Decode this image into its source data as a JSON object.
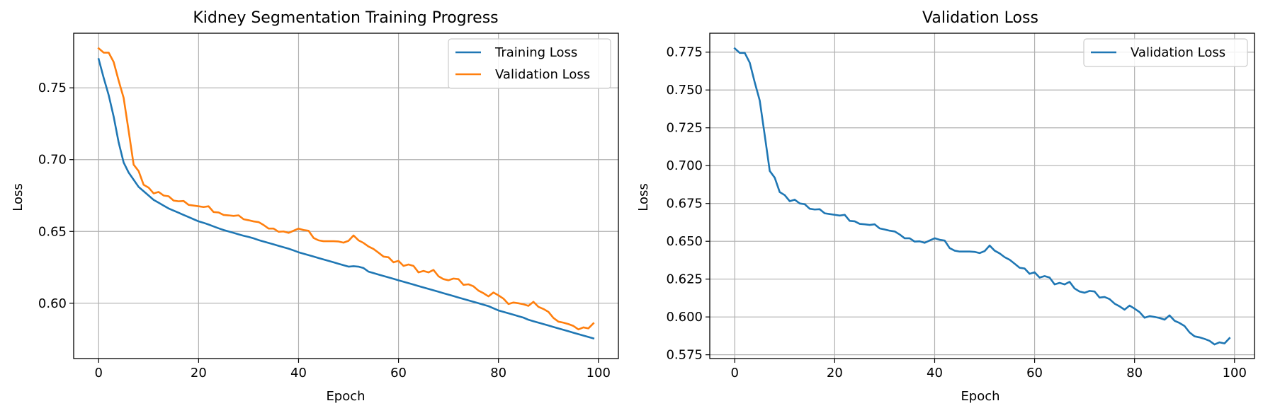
{
  "colors": {
    "training": "#1f77b4",
    "validation": "#ff7f0e",
    "grid": "#b0b0b0"
  },
  "chart_data": [
    {
      "type": "line",
      "title": "Kidney Segmentation Training Progress",
      "xlabel": "Epoch",
      "ylabel": "Loss",
      "xlim": [
        -5,
        104
      ],
      "ylim": [
        0.5615,
        0.788
      ],
      "xticks": [
        0,
        20,
        40,
        60,
        80,
        100
      ],
      "yticks": [
        0.6,
        0.65,
        0.7,
        0.75
      ],
      "ytick_labels": [
        "0.60",
        "0.65",
        "0.70",
        "0.75"
      ],
      "grid": true,
      "legend": "top-right",
      "series": [
        {
          "name": "Training Loss",
          "color": "#1f77b4",
          "x_start": 0,
          "values": [
            0.77,
            0.757,
            0.745,
            0.73,
            0.712,
            0.698,
            0.691,
            0.686,
            0.681,
            0.678,
            0.675,
            0.672,
            0.67,
            0.668,
            0.666,
            0.6645,
            0.663,
            0.6615,
            0.66,
            0.6585,
            0.657,
            0.656,
            0.6548,
            0.6535,
            0.6522,
            0.651,
            0.65,
            0.649,
            0.648,
            0.647,
            0.6462,
            0.6452,
            0.644,
            0.643,
            0.642,
            0.641,
            0.64,
            0.639,
            0.638,
            0.6368,
            0.6355,
            0.6345,
            0.6335,
            0.6325,
            0.6315,
            0.6305,
            0.6295,
            0.6285,
            0.6275,
            0.6265,
            0.6255,
            0.6258,
            0.6255,
            0.6245,
            0.622,
            0.621,
            0.62,
            0.619,
            0.618,
            0.617,
            0.616,
            0.615,
            0.614,
            0.613,
            0.612,
            0.611,
            0.61,
            0.609,
            0.608,
            0.607,
            0.606,
            0.605,
            0.604,
            0.603,
            0.602,
            0.601,
            0.6,
            0.599,
            0.598,
            0.5965,
            0.595,
            0.594,
            0.593,
            0.592,
            0.591,
            0.59,
            0.5885,
            0.5875,
            0.5865,
            0.5855,
            0.5845,
            0.5835,
            0.5825,
            0.5815,
            0.5805,
            0.5795,
            0.5785,
            0.5775,
            0.5765,
            0.5755
          ]
        },
        {
          "name": "Validation Loss",
          "color": "#ff7f0e",
          "x_start": 0,
          "values": [
            0.7775,
            0.7745,
            0.7745,
            0.768,
            0.755,
            0.743,
            0.72,
            0.6965,
            0.692,
            0.6825,
            0.6805,
            0.6765,
            0.6775,
            0.675,
            0.6745,
            0.6715,
            0.671,
            0.6712,
            0.6685,
            0.668,
            0.6675,
            0.667,
            0.6675,
            0.6635,
            0.6632,
            0.6615,
            0.6612,
            0.6608,
            0.6612,
            0.6585,
            0.6578,
            0.657,
            0.6565,
            0.6545,
            0.652,
            0.652,
            0.6498,
            0.65,
            0.649,
            0.6505,
            0.652,
            0.651,
            0.6505,
            0.6455,
            0.6438,
            0.6432,
            0.6432,
            0.6432,
            0.643,
            0.6422,
            0.6435,
            0.6472,
            0.6438,
            0.642,
            0.6395,
            0.6378,
            0.6352,
            0.6325,
            0.632,
            0.6285,
            0.6295,
            0.626,
            0.627,
            0.626,
            0.6215,
            0.6225,
            0.6215,
            0.6232,
            0.6188,
            0.6168,
            0.616,
            0.6172,
            0.6168,
            0.6128,
            0.6132,
            0.6118,
            0.6088,
            0.607,
            0.6048,
            0.6075,
            0.6055,
            0.6032,
            0.5995,
            0.6005,
            0.6,
            0.5993,
            0.5982,
            0.601,
            0.5975,
            0.596,
            0.594,
            0.5898,
            0.5872,
            0.5865,
            0.5855,
            0.5842,
            0.5818,
            0.5832,
            0.5825,
            0.586
          ]
        }
      ]
    },
    {
      "type": "line",
      "title": "Validation Loss",
      "xlabel": "Epoch",
      "ylabel": "Loss",
      "xlim": [
        -5,
        104
      ],
      "ylim": [
        0.5725,
        0.7875
      ],
      "xticks": [
        0,
        20,
        40,
        60,
        80,
        100
      ],
      "yticks": [
        0.575,
        0.6,
        0.625,
        0.65,
        0.675,
        0.7,
        0.725,
        0.75,
        0.775
      ],
      "ytick_labels": [
        "0.575",
        "0.600",
        "0.625",
        "0.650",
        "0.675",
        "0.700",
        "0.725",
        "0.750",
        "0.775"
      ],
      "grid": true,
      "legend": "top-right",
      "series": [
        {
          "name": "Validation Loss",
          "color": "#1f77b4",
          "x_start": 0,
          "values": [
            0.7775,
            0.7745,
            0.7745,
            0.768,
            0.755,
            0.743,
            0.72,
            0.6965,
            0.692,
            0.6825,
            0.6805,
            0.6765,
            0.6775,
            0.675,
            0.6745,
            0.6715,
            0.671,
            0.6712,
            0.6685,
            0.668,
            0.6675,
            0.667,
            0.6675,
            0.6635,
            0.6632,
            0.6615,
            0.6612,
            0.6608,
            0.6612,
            0.6585,
            0.6578,
            0.657,
            0.6565,
            0.6545,
            0.652,
            0.652,
            0.6498,
            0.65,
            0.649,
            0.6505,
            0.652,
            0.651,
            0.6505,
            0.6455,
            0.6438,
            0.6432,
            0.6432,
            0.6432,
            0.643,
            0.6422,
            0.6435,
            0.6472,
            0.6438,
            0.642,
            0.6395,
            0.6378,
            0.6352,
            0.6325,
            0.632,
            0.6285,
            0.6295,
            0.626,
            0.627,
            0.626,
            0.6215,
            0.6225,
            0.6215,
            0.6232,
            0.6188,
            0.6168,
            0.616,
            0.6172,
            0.6168,
            0.6128,
            0.6132,
            0.6118,
            0.6088,
            0.607,
            0.6048,
            0.6075,
            0.6055,
            0.6032,
            0.5995,
            0.6005,
            0.6,
            0.5993,
            0.5982,
            0.601,
            0.5975,
            0.596,
            0.594,
            0.5898,
            0.5872,
            0.5865,
            0.5855,
            0.5842,
            0.5818,
            0.5832,
            0.5825,
            0.586
          ]
        }
      ]
    }
  ]
}
